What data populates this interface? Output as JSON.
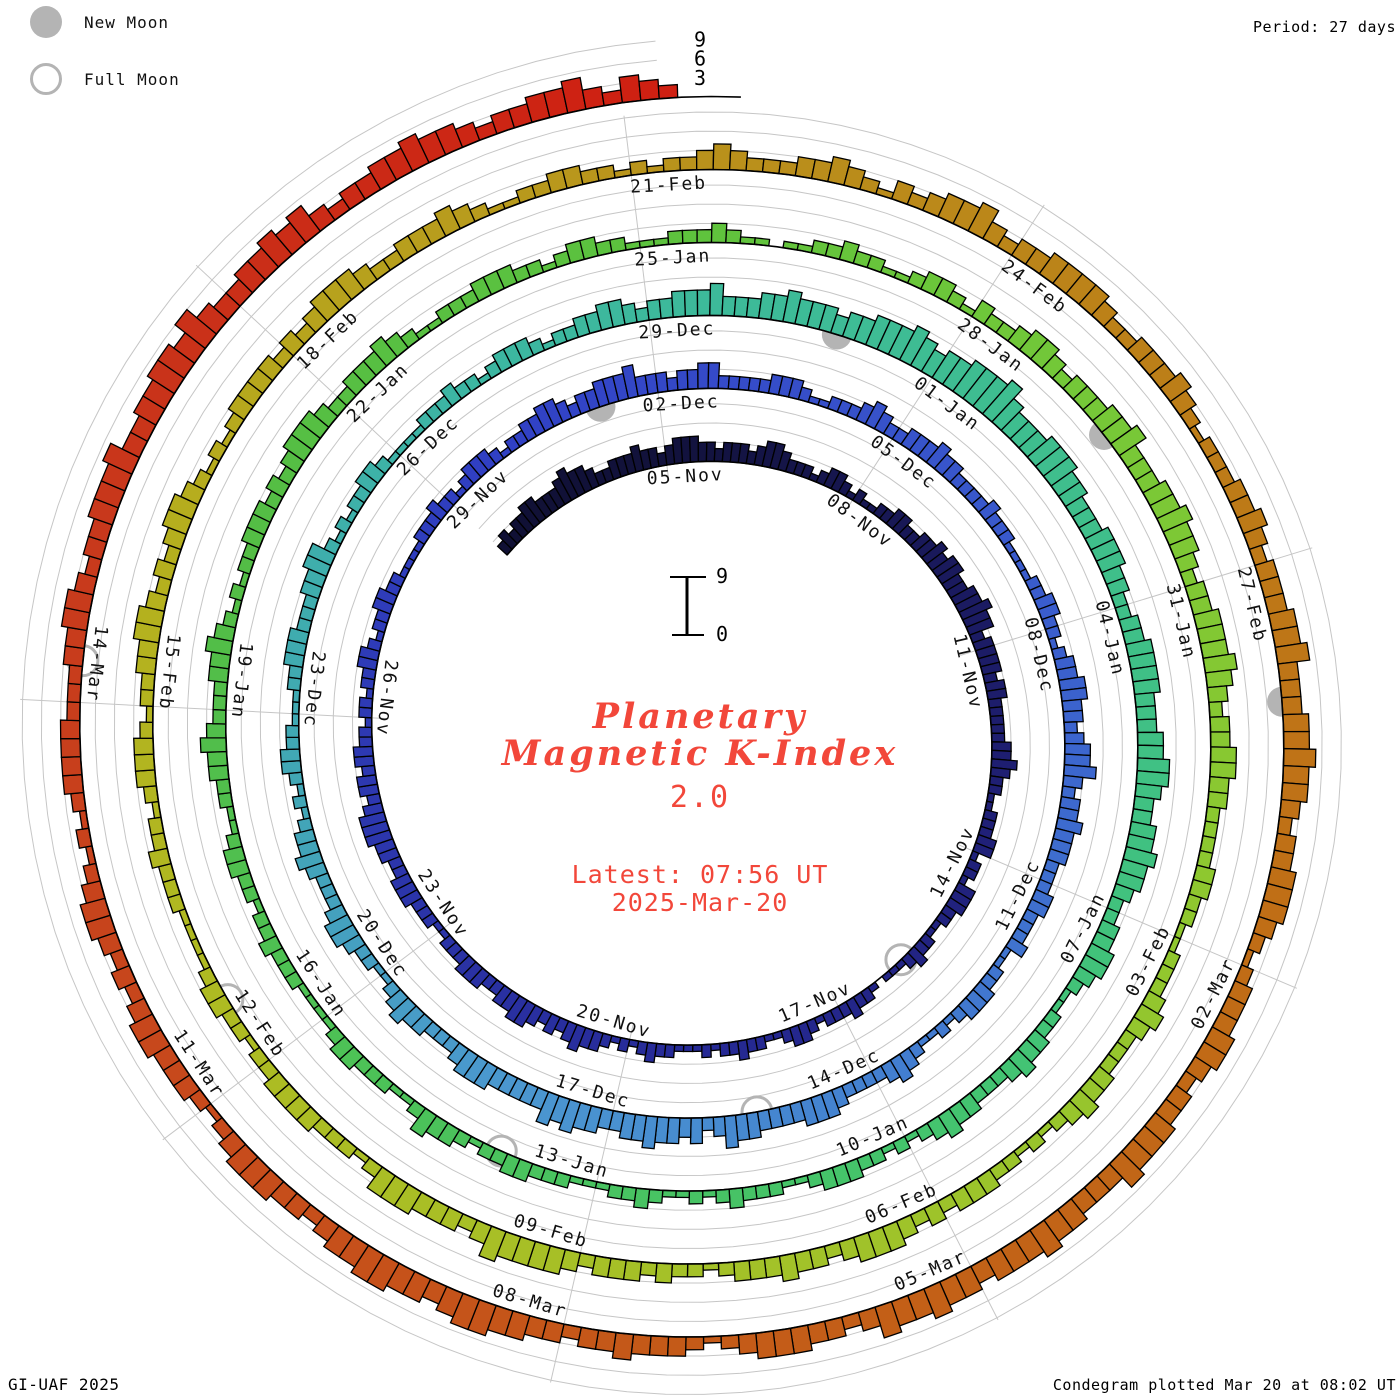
{
  "header": {
    "period_label": "Period: 27 days"
  },
  "legend": {
    "new_moon": "New Moon",
    "full_moon": "Full Moon"
  },
  "footer": {
    "left": "GI-UAF 2025",
    "right": "Condegram plotted Mar 20 at 08:02 UT"
  },
  "center": {
    "title_line1": "Planetary",
    "title_line2": "Magnetic K-Index",
    "current_k": "2.0",
    "latest_line1": "Latest: 07:56 UT",
    "latest_line2": "2025-Mar-20",
    "scale_top": "9",
    "scale_bottom": "0"
  },
  "axis": {
    "k_ticks": [
      "3",
      "6",
      "9"
    ]
  },
  "chart_data": {
    "type": "polar_spiral_bar_condegram",
    "title": "Planetary Magnetic K-Index",
    "period_days": 27,
    "hours_per_bar": 3,
    "k_range": [
      0,
      9
    ],
    "start_date": "2024-11-02",
    "reference_date_day0": "2024-11-05",
    "latest_reading": {
      "k": "2.0",
      "time": "07:56 UT",
      "date": "2025-Mar-20"
    },
    "label_step_days": 3,
    "date_labels": [
      "05-Nov",
      "08-Nov",
      "11-Nov",
      "14-Nov",
      "17-Nov",
      "20-Nov",
      "23-Nov",
      "26-Nov",
      "29-Nov",
      "02-Dec",
      "05-Dec",
      "08-Dec",
      "11-Dec",
      "14-Dec",
      "17-Dec",
      "20-Dec",
      "23-Dec",
      "26-Dec",
      "29-Dec",
      "01-Jan",
      "04-Jan",
      "07-Jan",
      "10-Jan",
      "13-Jan",
      "16-Jan",
      "19-Jan",
      "22-Jan",
      "25-Jan",
      "28-Jan",
      "31-Jan",
      "03-Feb",
      "06-Feb",
      "09-Feb",
      "12-Feb",
      "15-Feb",
      "18-Feb",
      "21-Feb",
      "24-Feb",
      "27-Feb",
      "02-Mar",
      "05-Mar",
      "08-Mar",
      "11-Mar",
      "14-Mar"
    ],
    "k_by_day_3h_estimated": [
      "23233443",
      "33454432",
      "23334332",
      "34443323",
      "33234432",
      "22123321",
      "21122332",
      "23343443",
      "34454423",
      "33323322",
      "22233432",
      "21122233",
      "12213332",
      "21122321",
      "11012232",
      "22123321",
      "12232212",
      "11122321",
      "21233432",
      "32344332",
      "23332221",
      "12223332",
      "23344432",
      "33233221",
      "22122332",
      "12233221",
      "11122232",
      "21233321",
      "22334432",
      "33444533",
      "32334422",
      "22233321",
      "12223432",
      "23334332",
      "22232221",
      "11122332",
      "21233443",
      "32344532",
      "33433322",
      "23322231",
      "12233321",
      "21123432",
      "22234443",
      "33344532",
      "43445443",
      "34454533",
      "33344432",
      "22334321",
      "12234432",
      "22343321",
      "21233221",
      "11223332",
      "22334421",
      "21223321",
      "11122232",
      "21233321",
      "22334432",
      "33444533",
      "34454443",
      "44555654",
      "55666754",
      "44555443",
      "33444332",
      "23344443",
      "33445543",
      "34454432",
      "23344321",
      "12233432",
      "22334321",
      "21223332",
      "11222321",
      "21123221",
      "11222332",
      "21233421",
      "12223321",
      "11122232",
      "21223321",
      "12233432",
      "22334321",
      "21223332",
      "32344432",
      "23334321",
      "12223332",
      "21233221",
      "11222321",
      "10112232",
      "21123321",
      "32234432",
      "33344533",
      "34454432",
      "33444543",
      "23344332",
      "22233221",
      "12223432",
      "22334321",
      "21223332",
      "32344432",
      "33433321",
      "22323332",
      "34444532",
      "33344421",
      "22233332",
      "21223321",
      "11122232",
      "21233321",
      "22334432",
      "32344321",
      "21233332",
      "32344432",
      "23334321",
      "12233221",
      "21223432",
      "22334321",
      "32344532",
      "33444432",
      "23334321",
      "22233432",
      "33344533",
      "34454432",
      "33444321",
      "23334432",
      "33444533",
      "34454443",
      "44544532",
      "33444321",
      "23334332",
      "33445543",
      "44554432",
      "33444321",
      "23334432",
      "32344321",
      "21233332",
      "22334432",
      "33444533",
      "44554643",
      "34454532",
      "33445443",
      "23344532",
      "432"
    ],
    "moons": {
      "new_moon_dates": [
        "2024-12-01",
        "2024-12-30",
        "2025-01-29",
        "2025-02-28"
      ],
      "new_moon_day_offsets": [
        26.26,
        55.94,
        85.53,
        115.03
      ],
      "full_moon_dates": [
        "2024-11-15",
        "2024-12-15",
        "2025-01-13",
        "2025-02-12",
        "2025-03-14"
      ],
      "full_moon_day_offsets": [
        10.89,
        40.38,
        69.94,
        99.58,
        129.29
      ]
    },
    "colors": {
      "grid": "#c6c6c6",
      "baseline": "#000000",
      "moon_gray": "#b4b4b4",
      "accent_red_text": "#f2473a",
      "colormap_day_stops": [
        [
          -3,
          "#101034"
        ],
        [
          0,
          "#12123c"
        ],
        [
          8,
          "#1f1f74"
        ],
        [
          14,
          "#262a96"
        ],
        [
          21,
          "#2e3ab4"
        ],
        [
          25,
          "#3040c4"
        ],
        [
          27,
          "#3448c8"
        ],
        [
          33,
          "#3a5ecd"
        ],
        [
          39,
          "#4380d0"
        ],
        [
          43,
          "#4b97d0"
        ],
        [
          47,
          "#41a6b6"
        ],
        [
          52,
          "#3cb6a2"
        ],
        [
          57,
          "#3ebd92"
        ],
        [
          62,
          "#40c182"
        ],
        [
          66,
          "#44c46c"
        ],
        [
          71,
          "#4cc258"
        ],
        [
          76,
          "#53bd46"
        ],
        [
          81,
          "#5cc23e"
        ],
        [
          85,
          "#74c838"
        ],
        [
          89,
          "#8cc830"
        ],
        [
          94,
          "#a2c229"
        ],
        [
          99,
          "#adbc23"
        ],
        [
          103,
          "#b5b01e"
        ],
        [
          108,
          "#b9941c"
        ],
        [
          112,
          "#bc8018"
        ],
        [
          117,
          "#c06c16"
        ],
        [
          122,
          "#c45a18"
        ],
        [
          126,
          "#c74a1c"
        ],
        [
          130,
          "#c8391c"
        ],
        [
          133,
          "#cb2a16"
        ],
        [
          136,
          "#d01c10"
        ]
      ]
    },
    "layout_hints": {
      "grid_on": true,
      "k_gridlines": [
        3,
        6,
        9
      ],
      "spokes_every_days": 3,
      "rotation": "clockwise, start at top"
    }
  }
}
